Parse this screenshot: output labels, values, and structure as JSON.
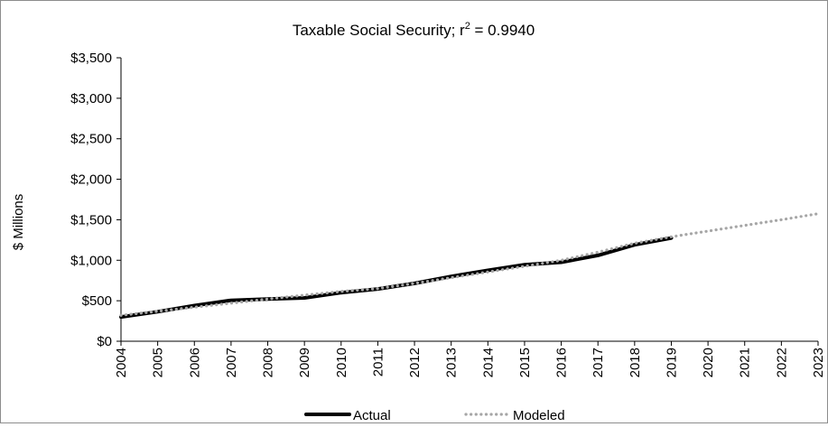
{
  "chart_data": {
    "type": "line",
    "title": "Taxable Social Security; r",
    "title_sup": "2",
    "title_suffix": " = 0.9940",
    "xlabel": "",
    "ylabel": "$ Millions",
    "ylim": [
      0,
      3500
    ],
    "y_ticks": [
      0,
      500,
      1000,
      1500,
      2000,
      2500,
      3000,
      3500
    ],
    "y_tick_labels": [
      "$0",
      "$500",
      "$1,000",
      "$1,500",
      "$2,000",
      "$2,500",
      "$3,000",
      "$3,500"
    ],
    "x": [
      "2004",
      "2005",
      "2006",
      "2007",
      "2008",
      "2009",
      "2010",
      "2011",
      "2012",
      "2013",
      "2014",
      "2015",
      "2016",
      "2017",
      "2018",
      "2019",
      "2020",
      "2021",
      "2022",
      "2023"
    ],
    "grid": false,
    "legend_position": "bottom",
    "series": [
      {
        "name": "Actual",
        "color": "#000000",
        "style": "solid",
        "values": [
          300,
          365,
          440,
          505,
          520,
          535,
          600,
          645,
          715,
          800,
          875,
          945,
          975,
          1060,
          1190,
          1275,
          null,
          null,
          null,
          null
        ]
      },
      {
        "name": "Modeled",
        "color": "#a6a6a6",
        "style": "dotted",
        "values": [
          320,
          370,
          420,
          470,
          520,
          570,
          615,
          650,
          715,
          785,
          855,
          925,
          1000,
          1100,
          1210,
          1290,
          1360,
          1430,
          1500,
          1575
        ]
      }
    ]
  }
}
